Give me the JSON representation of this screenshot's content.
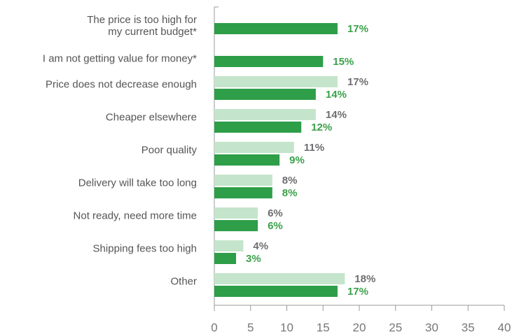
{
  "chart_data": {
    "type": "bar",
    "orientation": "horizontal",
    "categories": [
      "The price is too high for\nmy current budget*",
      "I am not getting value for money*",
      "Price does not decrease enough",
      "Cheaper elsewhere",
      "Poor quality",
      "Delivery will take too long",
      "Not ready, need more time",
      "Shipping fees too high",
      "Other"
    ],
    "series": [
      {
        "color": "#c4e5cb",
        "label_color": "#6d6e71",
        "values": [
          null,
          null,
          17,
          14,
          11,
          8,
          6,
          4,
          18
        ],
        "value_labels": [
          null,
          null,
          "17%",
          "14%",
          "11%",
          "8%",
          "6%",
          "4%",
          "18%"
        ]
      },
      {
        "color": "#2e9e48",
        "label_color": "#3aa14a",
        "values": [
          17,
          15,
          14,
          12,
          9,
          8,
          6,
          3,
          17
        ],
        "value_labels": [
          "17%",
          "15%",
          "14%",
          "12%",
          "9%",
          "8%",
          "6%",
          "3%",
          "17%"
        ]
      }
    ],
    "xlim": [
      0,
      40
    ],
    "xticks": [
      0,
      5,
      10,
      15,
      20,
      25,
      30,
      35,
      40
    ]
  }
}
